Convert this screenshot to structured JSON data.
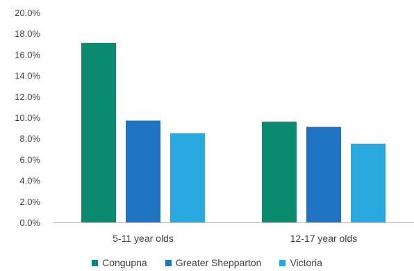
{
  "chart_data": {
    "type": "bar",
    "categories": [
      "5-11 year olds",
      "12-17 year olds"
    ],
    "series": [
      {
        "name": "Congupna",
        "color": "#0b8a6f",
        "values": [
          17.1,
          9.6
        ]
      },
      {
        "name": "Greater Shepparton",
        "color": "#1f73c0",
        "values": [
          9.7,
          9.1
        ]
      },
      {
        "name": "Victoria",
        "color": "#2aa9e0",
        "values": [
          8.5,
          7.5
        ]
      }
    ],
    "y_ticks": [
      "0.0%",
      "2.0%",
      "4.0%",
      "6.0%",
      "8.0%",
      "10.0%",
      "12.0%",
      "14.0%",
      "16.0%",
      "18.0%",
      "20.0%"
    ],
    "ylim": [
      0,
      20
    ],
    "grid": false,
    "legend_position": "bottom"
  }
}
